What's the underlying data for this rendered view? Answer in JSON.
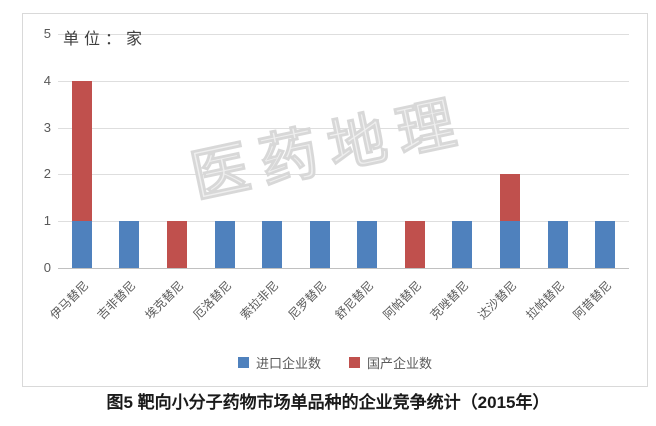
{
  "figure": {
    "unit_label": "单位：家",
    "watermark": "医药地理",
    "caption": "图5 靶向小分子药物市场单品种的企业竞争统计（2015年）"
  },
  "legend": {
    "items": [
      {
        "label": "进口企业数",
        "color": "#4f81bd"
      },
      {
        "label": "国产企业数",
        "color": "#c0504d"
      }
    ]
  },
  "chart_data": {
    "type": "bar",
    "stacked": true,
    "title": "图5 靶向小分子药物市场单品种的企业竞争统计（2015年）",
    "unit_label": "单位：家",
    "watermark": "医药地理",
    "categories": [
      "伊马替尼",
      "吉非替尼",
      "埃克替尼",
      "厄洛替尼",
      "索拉非尼",
      "尼罗替尼",
      "舒尼替尼",
      "阿帕替尼",
      "克唑替尼",
      "达沙替尼",
      "拉帕替尼",
      "阿昔替尼"
    ],
    "series": [
      {
        "name": "进口企业数",
        "color": "#4f81bd",
        "values": [
          1,
          1,
          0,
          1,
          1,
          1,
          1,
          0,
          1,
          1,
          1,
          1
        ]
      },
      {
        "name": "国产企业数",
        "color": "#c0504d",
        "values": [
          3,
          0,
          1,
          0,
          0,
          0,
          0,
          1,
          0,
          1,
          0,
          0
        ]
      }
    ],
    "totals": [
      4,
      1,
      1,
      1,
      1,
      1,
      1,
      1,
      1,
      2,
      1,
      1
    ],
    "ylim": [
      0,
      5
    ],
    "y_ticks": [
      0,
      1,
      2,
      3,
      4,
      5
    ],
    "grid": true,
    "legend_position": "bottom"
  }
}
